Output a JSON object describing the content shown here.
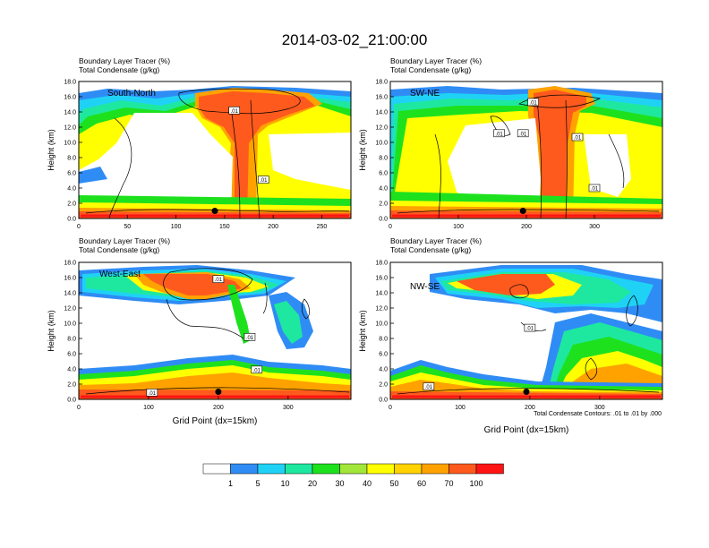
{
  "figure": {
    "title": "2014-03-02_21:00:00",
    "contour_note": "Total Condensate Contours: .01 to .01 by .000"
  },
  "colorbar": {
    "colors": [
      "#ffffff",
      "#2f8cf5",
      "#1fd2f5",
      "#1ee8a0",
      "#1ee11e",
      "#a3e63a",
      "#ffff00",
      "#ffd200",
      "#ffa200",
      "#ff5a1e",
      "#ff1414"
    ],
    "labels": [
      "1",
      "5",
      "10",
      "20",
      "30",
      "40",
      "50",
      "60",
      "70",
      "100"
    ]
  },
  "chart_data": [
    {
      "type": "heatmap",
      "panel": "South-North",
      "label": "South-North",
      "title_line1": "Boundary Layer Tracer   (%)",
      "title_line2": "Total Condensate   (g/kg)",
      "ylabel": "Height (km)",
      "xlabel": "",
      "xlim": [
        0,
        280
      ],
      "ylim": [
        0,
        18
      ],
      "xticks": [
        0,
        50,
        100,
        150,
        200,
        250
      ],
      "yticks": [
        "0.0",
        "2.0",
        "4.0",
        "6.0",
        "8.0",
        "10.0",
        "12.0",
        "14.0",
        "16.0",
        "18.0"
      ],
      "contour_labels": [
        {
          "x": 160,
          "y": 14.2,
          "text": ".01"
        },
        {
          "x": 190,
          "y": 5.1,
          "text": ".01"
        }
      ],
      "marker": {
        "x": 140,
        "y": 1.0
      }
    },
    {
      "type": "heatmap",
      "panel": "SW-NE",
      "label": "SW-NE",
      "title_line1": "Boundary Layer Tracer   (%)",
      "title_line2": "Total Condensate   (g/kg)",
      "ylabel": "Height (km)",
      "xlabel": "",
      "xlim": [
        0,
        400
      ],
      "ylim": [
        0,
        18
      ],
      "xticks": [
        0,
        100,
        200,
        300
      ],
      "yticks": [
        "0.0",
        "2.0",
        "4.0",
        "6.0",
        "8.0",
        "10.0",
        "12.0",
        "14.0",
        "16.0",
        "18.0"
      ],
      "contour_labels": [
        {
          "x": 210,
          "y": 15.3,
          "text": ".01"
        },
        {
          "x": 160,
          "y": 11.2,
          "text": ".01"
        },
        {
          "x": 195,
          "y": 11.2,
          "text": ".01"
        },
        {
          "x": 275,
          "y": 10.7,
          "text": ".01"
        },
        {
          "x": 300,
          "y": 4.0,
          "text": ".01"
        }
      ],
      "marker": {
        "x": 195,
        "y": 1.0
      }
    },
    {
      "type": "heatmap",
      "panel": "West-East",
      "label": "West-East",
      "title_line1": "Boundary Layer Tracer   (%)",
      "title_line2": "Total Condensate   (g/kg)",
      "ylabel": "Height (km)",
      "xlabel": "Grid Point (dx=15km)",
      "xlim": [
        0,
        390
      ],
      "ylim": [
        0,
        18
      ],
      "xticks": [
        0,
        100,
        200,
        300
      ],
      "yticks": [
        "0.0",
        "2.0",
        "4.0",
        "6.0",
        "8.0",
        "10.0",
        "12.0",
        "14.0",
        "16.0",
        "18.0"
      ],
      "contour_labels": [
        {
          "x": 200,
          "y": 15.8,
          "text": ".01"
        },
        {
          "x": 245,
          "y": 8.2,
          "text": ".01"
        },
        {
          "x": 255,
          "y": 3.9,
          "text": ".01"
        },
        {
          "x": 105,
          "y": 0.9,
          "text": ".01"
        }
      ],
      "marker": {
        "x": 200,
        "y": 1.0
      }
    },
    {
      "type": "heatmap",
      "panel": "NW-SE",
      "label": "NW-SE",
      "title_line1": "Boundary Layer Tracer   (%)",
      "title_line2": "Total Condensate   (g/kg)",
      "ylabel": "Height (km)",
      "xlabel": "Grid Point (dx=15km)",
      "xlim": [
        0,
        390
      ],
      "ylim": [
        0,
        18
      ],
      "xticks": [
        0,
        100,
        200,
        300
      ],
      "yticks": [
        "0.0",
        "2.0",
        "4.0",
        "6.0",
        "8.0",
        "10.0",
        "12.0",
        "14.0",
        "16.0",
        "18.0"
      ],
      "contour_labels": [
        {
          "x": 200,
          "y": 9.4,
          "text": ".01"
        },
        {
          "x": 55,
          "y": 1.7,
          "text": ".01"
        }
      ],
      "marker": {
        "x": 195,
        "y": 1.0
      }
    }
  ]
}
